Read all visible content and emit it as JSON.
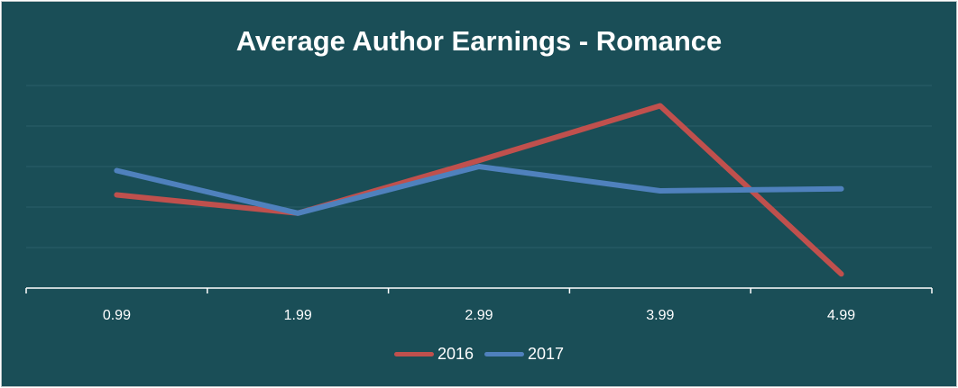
{
  "chart_data": {
    "type": "line",
    "title": "Average Author Earnings - Romance",
    "categories": [
      "0.99",
      "1.99",
      "2.99",
      "3.99",
      "4.99"
    ],
    "series": [
      {
        "name": "2016",
        "values": [
          46,
          37,
          63,
          90,
          7
        ],
        "color": "#c0504d"
      },
      {
        "name": "2017",
        "values": [
          58,
          37,
          60,
          48,
          49
        ],
        "color": "#4f81bd"
      }
    ],
    "ylim": [
      0,
      100
    ],
    "grid": true,
    "legend": "bottom",
    "xlabel": "",
    "ylabel": ""
  },
  "colors": {
    "background": "#1a4e57",
    "text": "#ffffff",
    "axis": "#ffffff",
    "grid": "#2b5f68"
  }
}
